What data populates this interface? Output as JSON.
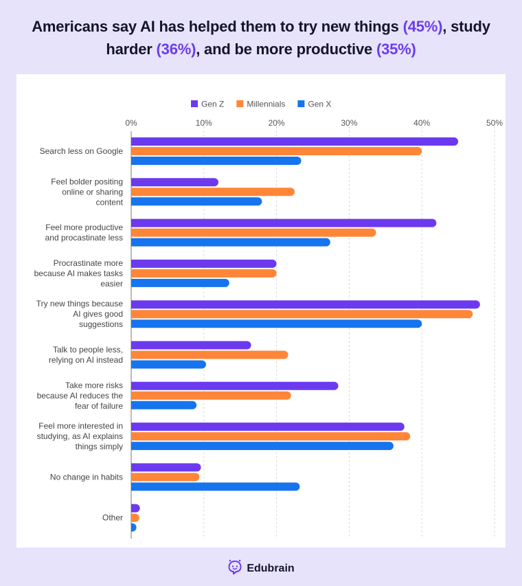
{
  "header": {
    "title_parts": [
      {
        "text": "Americans say AI has helped them to try new things ",
        "highlight": false
      },
      {
        "text": "(45%)",
        "highlight": true
      },
      {
        "text": ", study",
        "highlight": false
      },
      {
        "text": "harder ",
        "highlight": false,
        "newline": true
      },
      {
        "text": "(36%)",
        "highlight": true
      },
      {
        "text": ", and be more productive ",
        "highlight": false
      },
      {
        "text": "(35%)",
        "highlight": true
      }
    ]
  },
  "footer": {
    "brand": "Edubrain",
    "logo_icon": "robot-chat-icon"
  },
  "colors": {
    "background": "#E6E3FB",
    "accent": "#6C3CEC",
    "gen_z": "#6C3AEE",
    "millennials": "#FF8638",
    "gen_x": "#1674EE"
  },
  "chart_data": {
    "type": "bar",
    "orientation": "horizontal",
    "title": "Americans say AI has helped them to try new things (45%), study harder (36%), and be more productive (35%)",
    "xlabel": "",
    "ylabel": "",
    "xlim": [
      0,
      50
    ],
    "x_ticks": [
      "0%",
      "10%",
      "20%",
      "30%",
      "40%",
      "50%"
    ],
    "x_tick_values": [
      0,
      10,
      20,
      30,
      40,
      50
    ],
    "grid": "vertical dashed",
    "legend_position": "top-center",
    "categories": [
      "Search less on Google",
      "Feel bolder positing online or sharing content",
      "Feel more productive and procastinate less",
      "Procrastinate more because AI makes tasks easier",
      "Try new things because AI gives good suggestions",
      "Talk to people less, relying on AI instead",
      "Take more risks because AI reduces the fear of failure",
      "Feel more interested in studying, as AI explains things simply",
      "No change in habits",
      "Other"
    ],
    "category_lines": [
      [
        "Search less on Google"
      ],
      [
        "Feel bolder positing",
        "online or sharing",
        "content"
      ],
      [
        "Feel more productive",
        "and procastinate less"
      ],
      [
        "Procrastinate more",
        "because AI makes tasks",
        "easier"
      ],
      [
        "Try new things because",
        "AI gives good",
        "suggestions"
      ],
      [
        "Talk to people less,",
        "relying on AI instead"
      ],
      [
        "Take more risks",
        "because AI reduces the",
        "fear of failure"
      ],
      [
        "Feel more interested in",
        "studying, as AI explains",
        "things simply"
      ],
      [
        "No change in habits"
      ],
      [
        "Other"
      ]
    ],
    "series": [
      {
        "name": "Gen Z",
        "color": "#6C3AEE",
        "values": [
          45,
          12,
          42,
          20,
          48,
          16.5,
          28.5,
          37.6,
          9.6,
          1.2
        ]
      },
      {
        "name": "Millennials",
        "color": "#FF8638",
        "values": [
          40,
          22.5,
          33.7,
          20,
          47,
          21.6,
          22,
          38.4,
          9.4,
          1.1
        ]
      },
      {
        "name": "Gen X",
        "color": "#1674EE",
        "values": [
          23.4,
          18,
          27.4,
          13.5,
          40,
          10.3,
          9,
          36.1,
          23.2,
          0.3
        ]
      }
    ]
  }
}
